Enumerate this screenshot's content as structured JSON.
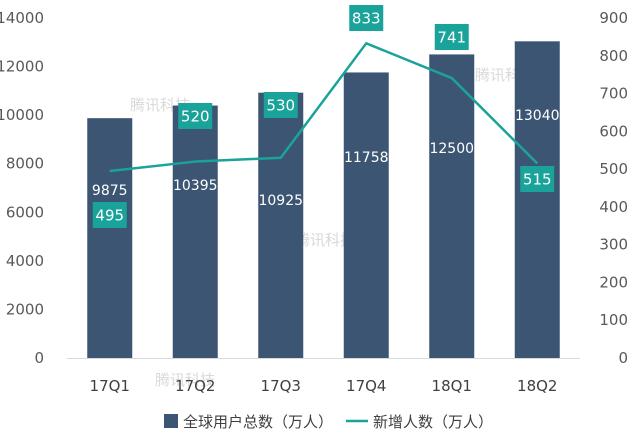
{
  "chart_data": {
    "type": "bar+line",
    "categories": [
      "17Q1",
      "17Q2",
      "17Q3",
      "17Q4",
      "18Q1",
      "18Q2"
    ],
    "series": [
      {
        "name": "全球用户总数（万人）",
        "type": "bar",
        "axis": "left",
        "values": [
          9875,
          10395,
          10925,
          11758,
          12500,
          13040
        ]
      },
      {
        "name": "新增人数（万人）",
        "type": "line",
        "axis": "right",
        "values": [
          495,
          520,
          530,
          833,
          741,
          515
        ]
      }
    ],
    "y_left": {
      "range": [
        0,
        14000
      ],
      "ticks": [
        0,
        2000,
        4000,
        6000,
        8000,
        10000,
        12000,
        14000
      ]
    },
    "y_right": {
      "range": [
        0,
        900
      ],
      "ticks": [
        0,
        100,
        200,
        300,
        400,
        500,
        600,
        700,
        800,
        900
      ]
    },
    "grid": false,
    "legend_position": "bottom",
    "colors": {
      "bar": "#3b5573",
      "line": "#1aa39a",
      "label_box": "#1aa39a"
    },
    "watermark": "腾讯科技"
  }
}
